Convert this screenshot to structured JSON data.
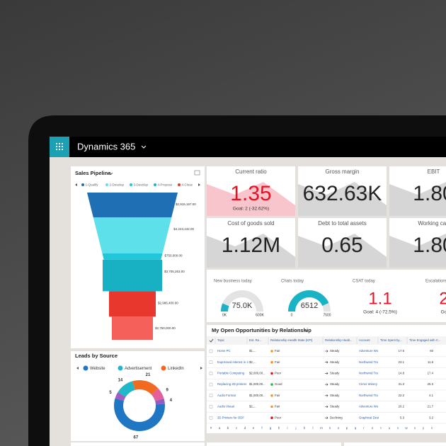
{
  "app": {
    "title": "Dynamics 365"
  },
  "sales_pipeline": {
    "title": "Sales Pipeline",
    "legend": [
      "1-Qualify",
      "2-Develop",
      "3-Develop",
      "4-Propose",
      "4-Close"
    ],
    "legend_colors": [
      "#1f6fb5",
      "#5ee0ea",
      "#21c7d8",
      "#1ab3c6",
      "#e8372c"
    ],
    "values": [
      2915167,
      4243442,
      750000,
      3705263,
      2986400,
      2750000
    ],
    "value_labels": [
      "$2,915,167.00",
      "$4,243,442.00",
      "$750,000.00",
      "$3,705,263.00",
      "$2,986,400.00",
      "$2,750,000.00"
    ],
    "colors": [
      "#1f6fb5",
      "#5ee0ea",
      "#21c7d8",
      "#18b1c4",
      "#e8372c",
      "#f5615a"
    ]
  },
  "leads_by_source": {
    "title": "Leads by Source",
    "legend": [
      "Website",
      "Advertisement",
      "LinkedIn"
    ],
    "legend_colors": [
      "#1f77c4",
      "#20b7c8",
      "#f06a22"
    ],
    "values": [
      21,
      9,
      4,
      67,
      5,
      14
    ],
    "colors": [
      "#f06a22",
      "#e4609c",
      "#8e5cc4",
      "#1f77c4",
      "#a05cc0",
      "#20b7c8"
    ]
  },
  "kpis": [
    {
      "title": "Current ratio",
      "value": "1.35",
      "goal": "Goal: 2 (-32.62%)",
      "color": "#e81123",
      "area": "#f9c5cc"
    },
    {
      "title": "Gross margin",
      "value": "632.63K",
      "color": "#222222",
      "area": "#d6d6d6"
    },
    {
      "title": "EBIT",
      "value": "1.80",
      "color": "#222222",
      "area": "#d6d6d6"
    },
    {
      "title": "Cost of goods sold",
      "value": "1.12M",
      "color": "#222222",
      "area": "#d6d6d6"
    },
    {
      "title": "Debt to total assets",
      "value": "0.65",
      "color": "#222222",
      "area": "#d6d6d6"
    },
    {
      "title": "Working cap",
      "value": "1.80",
      "color": "#222222",
      "area": "#d6d6d6"
    }
  ],
  "gauges": [
    {
      "title": "New business today",
      "value": 75000,
      "value_label": "75.0K",
      "min": 0,
      "min_label": "0K",
      "max": 600000,
      "max_label": "600K",
      "color": "#1ab3c6"
    },
    {
      "title": "Chats today",
      "value": 6512,
      "min": 0,
      "max": 7500,
      "color": "#1ab3c6"
    }
  ],
  "scores": [
    {
      "title": "CSAT today",
      "value": "1.1",
      "goal": "Goal: 4 (-72.5%)",
      "color": "#e81123"
    },
    {
      "title": "Escalations",
      "value": "2",
      "goal": "Go",
      "color": "#e81123"
    }
  ],
  "table": {
    "title": "My Open Opportunities by Relationship",
    "columns": [
      "Topic",
      "Est. Re...",
      "Relationship Health State (KPI)",
      "Relationship Healt...",
      "Account",
      "Time Spent by...",
      "Time Engaged with C..."
    ],
    "rows": [
      [
        "Home PC",
        "$1,...",
        "Fair",
        "Steady",
        "Adventure Wo",
        "17.6",
        "60"
      ],
      [
        "Expressed interest in 4",
        "$2,...",
        "Fair",
        "Steady",
        "Northwind Tra",
        "23.1",
        "11.8"
      ],
      [
        "Portable Computing",
        "$2,000,00...",
        "Poor",
        "Steady",
        "Northwind Tra",
        "14.8",
        "17.4"
      ],
      [
        "Replacing 3D printers",
        "$1,000,00...",
        "Good",
        "Steady",
        "Cirrus Winery",
        "31.3",
        "25.3"
      ],
      [
        "Audio Format",
        "$1,000,00...",
        "Fair",
        "Steady",
        "Northwind Tra",
        "22.2",
        "4.1"
      ],
      [
        "Audio Visual",
        "$2,...",
        "Fair",
        "Steady",
        "Adventure Wo",
        "20.2",
        "21.7"
      ],
      [
        "3D Printers for ODF",
        null,
        "Poor",
        "Declining",
        "Graphical Desi",
        "5.3",
        "3.2"
      ]
    ],
    "status_colors": {
      "Fair": "#f7941d",
      "Poor": "#e81123",
      "Good": "#2fb34a"
    },
    "alphabet": [
      "#",
      "a",
      "b",
      "c",
      "d",
      "e",
      "f",
      "g",
      "h",
      "i",
      "j",
      "k",
      "l",
      "m",
      "n",
      "o",
      "p",
      "q",
      "r",
      "s",
      "t",
      "u",
      "v",
      "w",
      "x",
      "y",
      "z"
    ]
  }
}
